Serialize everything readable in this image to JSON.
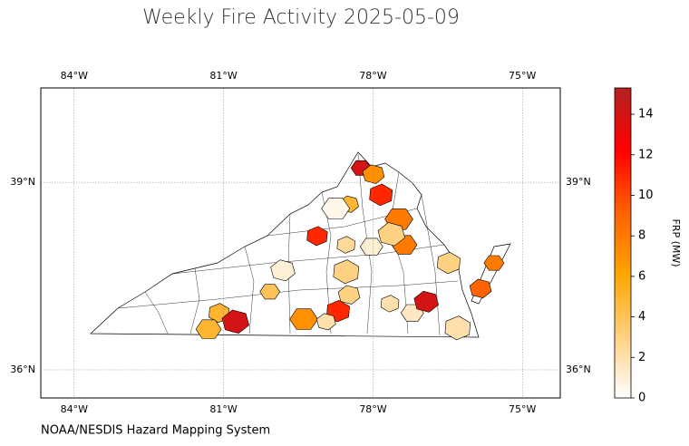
{
  "chart_data": {
    "type": "choropleth",
    "title": "Weekly Fire Activity 2025-05-09",
    "source": "NOAA/NESDIS Hazard Mapping System",
    "colorbar_label": "FRP (MW)",
    "xlim": [
      -84.67,
      -74.24
    ],
    "ylim": [
      35.55,
      40.51
    ],
    "xticks": [
      {
        "value": -84,
        "label": "84°W"
      },
      {
        "value": -81,
        "label": "81°W"
      },
      {
        "value": -78,
        "label": "78°W"
      },
      {
        "value": -75,
        "label": "75°W"
      }
    ],
    "yticks": [
      {
        "value": 36,
        "label": "36°N"
      },
      {
        "value": 39,
        "label": "39°N"
      }
    ],
    "clim": [
      0,
      15.3
    ],
    "cticks": [
      0,
      2,
      4,
      6,
      8,
      10,
      12,
      14
    ],
    "colormap": [
      "#ffffff",
      "#ffd080",
      "#ffa500",
      "#ff6000",
      "#ff0000",
      "#b22222"
    ],
    "grid": true,
    "regions": [
      {
        "lon": -78.24,
        "lat": 39.23,
        "value": 14
      },
      {
        "lon": -77.99,
        "lat": 39.13,
        "value": 7
      },
      {
        "lon": -77.84,
        "lat": 38.8,
        "value": 11
      },
      {
        "lon": -77.48,
        "lat": 38.41,
        "value": 8
      },
      {
        "lon": -78.48,
        "lat": 38.65,
        "value": 5
      },
      {
        "lon": -79.12,
        "lat": 38.14,
        "value": 11
      },
      {
        "lon": -77.37,
        "lat": 38.0,
        "value": 8
      },
      {
        "lon": -77.63,
        "lat": 38.17,
        "value": 3
      },
      {
        "lon": -78.54,
        "lat": 38.0,
        "value": 2.5
      },
      {
        "lon": -78.03,
        "lat": 37.97,
        "value": 1
      },
      {
        "lon": -79.81,
        "lat": 37.59,
        "value": 1
      },
      {
        "lon": -78.54,
        "lat": 37.57,
        "value": 3
      },
      {
        "lon": -80.07,
        "lat": 37.25,
        "value": 4
      },
      {
        "lon": -78.48,
        "lat": 37.2,
        "value": 3
      },
      {
        "lon": -78.7,
        "lat": 36.94,
        "value": 11
      },
      {
        "lon": -79.39,
        "lat": 36.81,
        "value": 7
      },
      {
        "lon": -78.94,
        "lat": 36.77,
        "value": 2
      },
      {
        "lon": -81.09,
        "lat": 36.91,
        "value": 5
      },
      {
        "lon": -81.3,
        "lat": 36.65,
        "value": 5
      },
      {
        "lon": -80.76,
        "lat": 36.77,
        "value": 14
      },
      {
        "lon": -77.66,
        "lat": 37.06,
        "value": 2
      },
      {
        "lon": -77.21,
        "lat": 36.91,
        "value": 1.5
      },
      {
        "lon": -76.93,
        "lat": 37.09,
        "value": 14
      },
      {
        "lon": -76.3,
        "lat": 36.67,
        "value": 2
      },
      {
        "lon": -75.57,
        "lat": 37.71,
        "value": 8
      },
      {
        "lon": -75.84,
        "lat": 37.3,
        "value": 9
      },
      {
        "lon": -76.48,
        "lat": 37.71,
        "value": 3
      },
      {
        "lon": -78.75,
        "lat": 38.58,
        "value": 0.5
      }
    ]
  }
}
